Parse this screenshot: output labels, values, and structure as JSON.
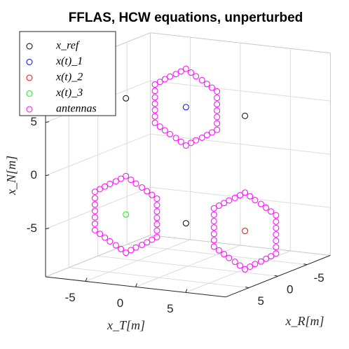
{
  "chart_data": {
    "type": "scatter3d",
    "title": "FFLAS, HCW equations, unperturbed",
    "xlabel": "x_T[m]",
    "ylabel": "x_R[m]",
    "zlabel": "x_N[m]",
    "xlim": [
      -9,
      9
    ],
    "ylim": [
      -9,
      9
    ],
    "zlim": [
      -9.5,
      9.5
    ],
    "xticks": [
      -5,
      0,
      5
    ],
    "yticks": [
      -5,
      0,
      5
    ],
    "zticks": [
      -5,
      0,
      5
    ],
    "grid": true,
    "legend": "upper left",
    "series": [
      {
        "name": "x_ref",
        "color": "#000000",
        "x": [
          -6.2,
          5.7,
          -0.2
        ],
        "y": [
          0,
          0,
          0
        ],
        "z": [
          5.6,
          5.2,
          -5.5
        ]
      },
      {
        "name": "x(t)_1",
        "color": "#0000ff",
        "x": [
          -0.2
        ],
        "y": [
          0
        ],
        "z": [
          5.4
        ]
      },
      {
        "name": "x(t)_2",
        "color": "#ff0000",
        "x": [
          5.7
        ],
        "y": [
          0
        ],
        "z": [
          -5.6
        ]
      },
      {
        "name": "x(t)_3",
        "color": "#00ff00",
        "x": [
          -6.2
        ],
        "y": [
          0
        ],
        "z": [
          -5.3
        ]
      },
      {
        "name": "antennas",
        "color": "#ff00ff",
        "x": [
          -0.2,
          0.3,
          0.8,
          1.4,
          1.9,
          2.4,
          2.9,
          2.9,
          2.9,
          2.9,
          2.9,
          2.9,
          2.9,
          2.4,
          1.9,
          1.4,
          0.8,
          0.3,
          -0.2,
          -0.7,
          -1.2,
          -1.8,
          -2.3,
          -2.8,
          -3.3,
          -3.3,
          -3.3,
          -3.3,
          -3.3,
          -3.3,
          -3.3,
          -2.8,
          -2.3,
          -1.8,
          -1.2,
          -0.7,
          -6.2,
          -5.7,
          -5.2,
          -4.6,
          -4.1,
          -3.6,
          -3.1,
          -3.1,
          -3.1,
          -3.1,
          -3.1,
          -3.1,
          -3.1,
          -3.6,
          -4.1,
          -4.6,
          -5.2,
          -5.7,
          -6.2,
          -6.7,
          -7.2,
          -7.8,
          -8.3,
          -8.8,
          -9.3,
          -9.3,
          -9.3,
          -9.3,
          -9.3,
          -9.3,
          -9.3,
          -8.8,
          -8.3,
          -7.8,
          -7.2,
          -6.7,
          5.7,
          6.2,
          6.7,
          7.3,
          7.8,
          8.3,
          8.8,
          8.8,
          8.8,
          8.8,
          8.8,
          8.8,
          8.8,
          8.3,
          7.8,
          7.3,
          6.7,
          6.2,
          5.7,
          5.2,
          4.7,
          4.1,
          3.6,
          3.1,
          2.6,
          2.6,
          2.6,
          2.6,
          2.6,
          2.6,
          2.6,
          3.1,
          3.6,
          4.1,
          4.7,
          5.2
        ],
        "y": [
          0,
          0,
          0,
          0,
          0,
          0,
          0,
          0,
          0,
          0,
          0,
          0,
          0,
          0,
          0,
          0,
          0,
          0,
          0,
          0,
          0,
          0,
          0,
          0,
          0,
          0,
          0,
          0,
          0,
          0,
          0,
          0,
          0,
          0,
          0,
          0,
          0,
          0,
          0,
          0,
          0,
          0,
          0,
          0,
          0,
          0,
          0,
          0,
          0,
          0,
          0,
          0,
          0,
          0,
          0,
          0,
          0,
          0,
          0,
          0,
          0,
          0,
          0,
          0,
          0,
          0,
          0,
          0,
          0,
          0,
          0,
          0,
          0,
          0,
          0,
          0,
          0,
          0,
          0,
          0,
          0,
          0,
          0,
          0,
          0,
          0,
          0,
          0,
          0,
          0,
          0,
          0,
          0,
          0,
          0,
          0,
          0,
          0,
          0,
          0,
          0,
          0,
          0,
          0,
          0,
          0,
          0,
          0
        ],
        "z": [
          9.0,
          8.7,
          8.4,
          8.1,
          7.8,
          7.5,
          7.2,
          6.6,
          6.0,
          5.4,
          4.8,
          4.2,
          3.6,
          3.3,
          3.0,
          2.7,
          2.4,
          2.1,
          1.8,
          2.1,
          2.4,
          2.7,
          3.0,
          3.3,
          3.6,
          4.2,
          4.8,
          5.4,
          6.0,
          6.6,
          7.2,
          7.5,
          7.8,
          8.1,
          8.4,
          8.7,
          -1.7,
          -2.0,
          -2.3,
          -2.6,
          -2.9,
          -3.2,
          -3.5,
          -4.1,
          -4.7,
          -5.3,
          -5.9,
          -6.5,
          -7.1,
          -7.4,
          -7.7,
          -8.0,
          -8.3,
          -8.6,
          -8.9,
          -8.6,
          -8.3,
          -8.0,
          -7.7,
          -7.4,
          -7.1,
          -6.5,
          -5.9,
          -5.3,
          -4.7,
          -4.1,
          -3.5,
          -3.2,
          -2.9,
          -2.6,
          -2.3,
          -2.0,
          -2.0,
          -2.3,
          -2.6,
          -2.9,
          -3.2,
          -3.5,
          -3.8,
          -4.4,
          -5.0,
          -5.6,
          -6.2,
          -6.8,
          -7.4,
          -7.7,
          -8.0,
          -8.3,
          -8.6,
          -8.9,
          -9.2,
          -8.9,
          -8.6,
          -8.3,
          -8.0,
          -7.7,
          -7.4,
          -6.8,
          -6.2,
          -5.6,
          -5.0,
          -4.4,
          -3.8,
          -3.5,
          -3.2,
          -2.9,
          -2.6,
          -2.3
        ]
      }
    ]
  }
}
